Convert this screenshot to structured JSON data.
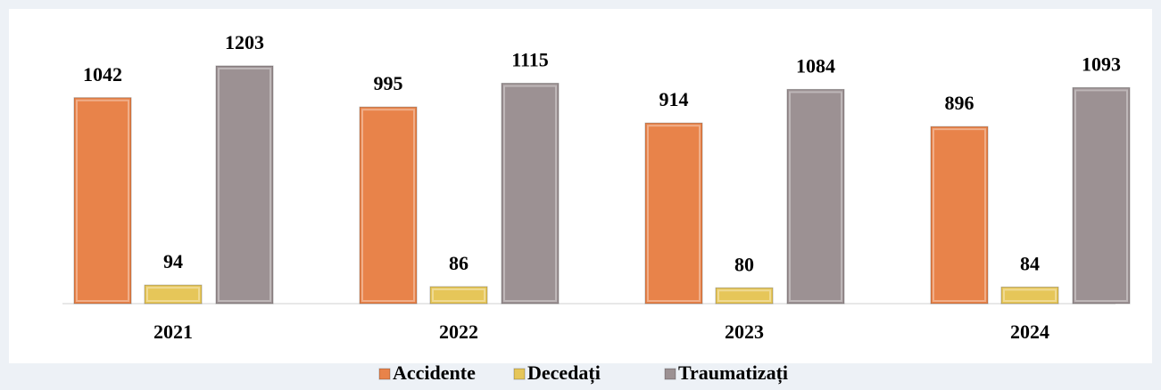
{
  "chart_data": {
    "type": "bar",
    "categories": [
      "2021",
      "2022",
      "2023",
      "2024"
    ],
    "series": [
      {
        "name": "Accidente",
        "color": "#e8834a",
        "values": [
          1042,
          995,
          914,
          896
        ]
      },
      {
        "name": "Decedați",
        "color": "#e6c659",
        "values": [
          94,
          86,
          80,
          84
        ]
      },
      {
        "name": "Traumatizați",
        "color": "#9c9193",
        "values": [
          1203,
          1115,
          1084,
          1093
        ]
      }
    ]
  }
}
